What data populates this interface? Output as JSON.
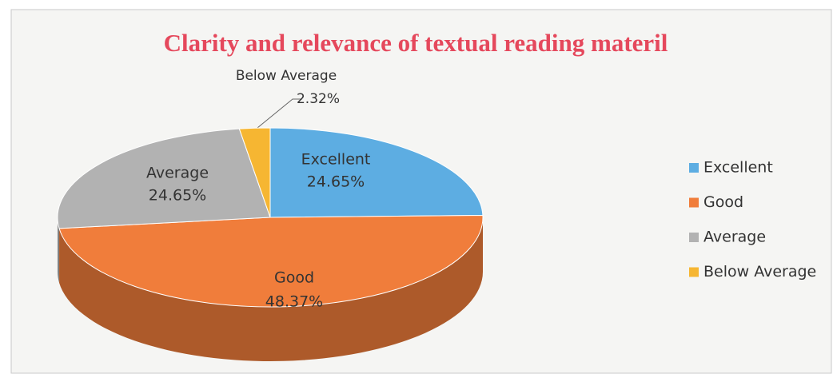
{
  "chart_data": {
    "type": "pie",
    "title": "Clarity and relevance of textual reading materil",
    "categories": [
      "Excellent",
      "Good",
      "Average",
      "Below Average"
    ],
    "values": [
      24.65,
      48.37,
      24.65,
      2.32
    ],
    "value_labels": [
      "24.65%",
      "48.37%",
      "24.65%",
      "2.32%"
    ],
    "colors": [
      "#5dade2",
      "#f07d3b",
      "#b2b2b2",
      "#f6b632"
    ],
    "legend": "right"
  }
}
